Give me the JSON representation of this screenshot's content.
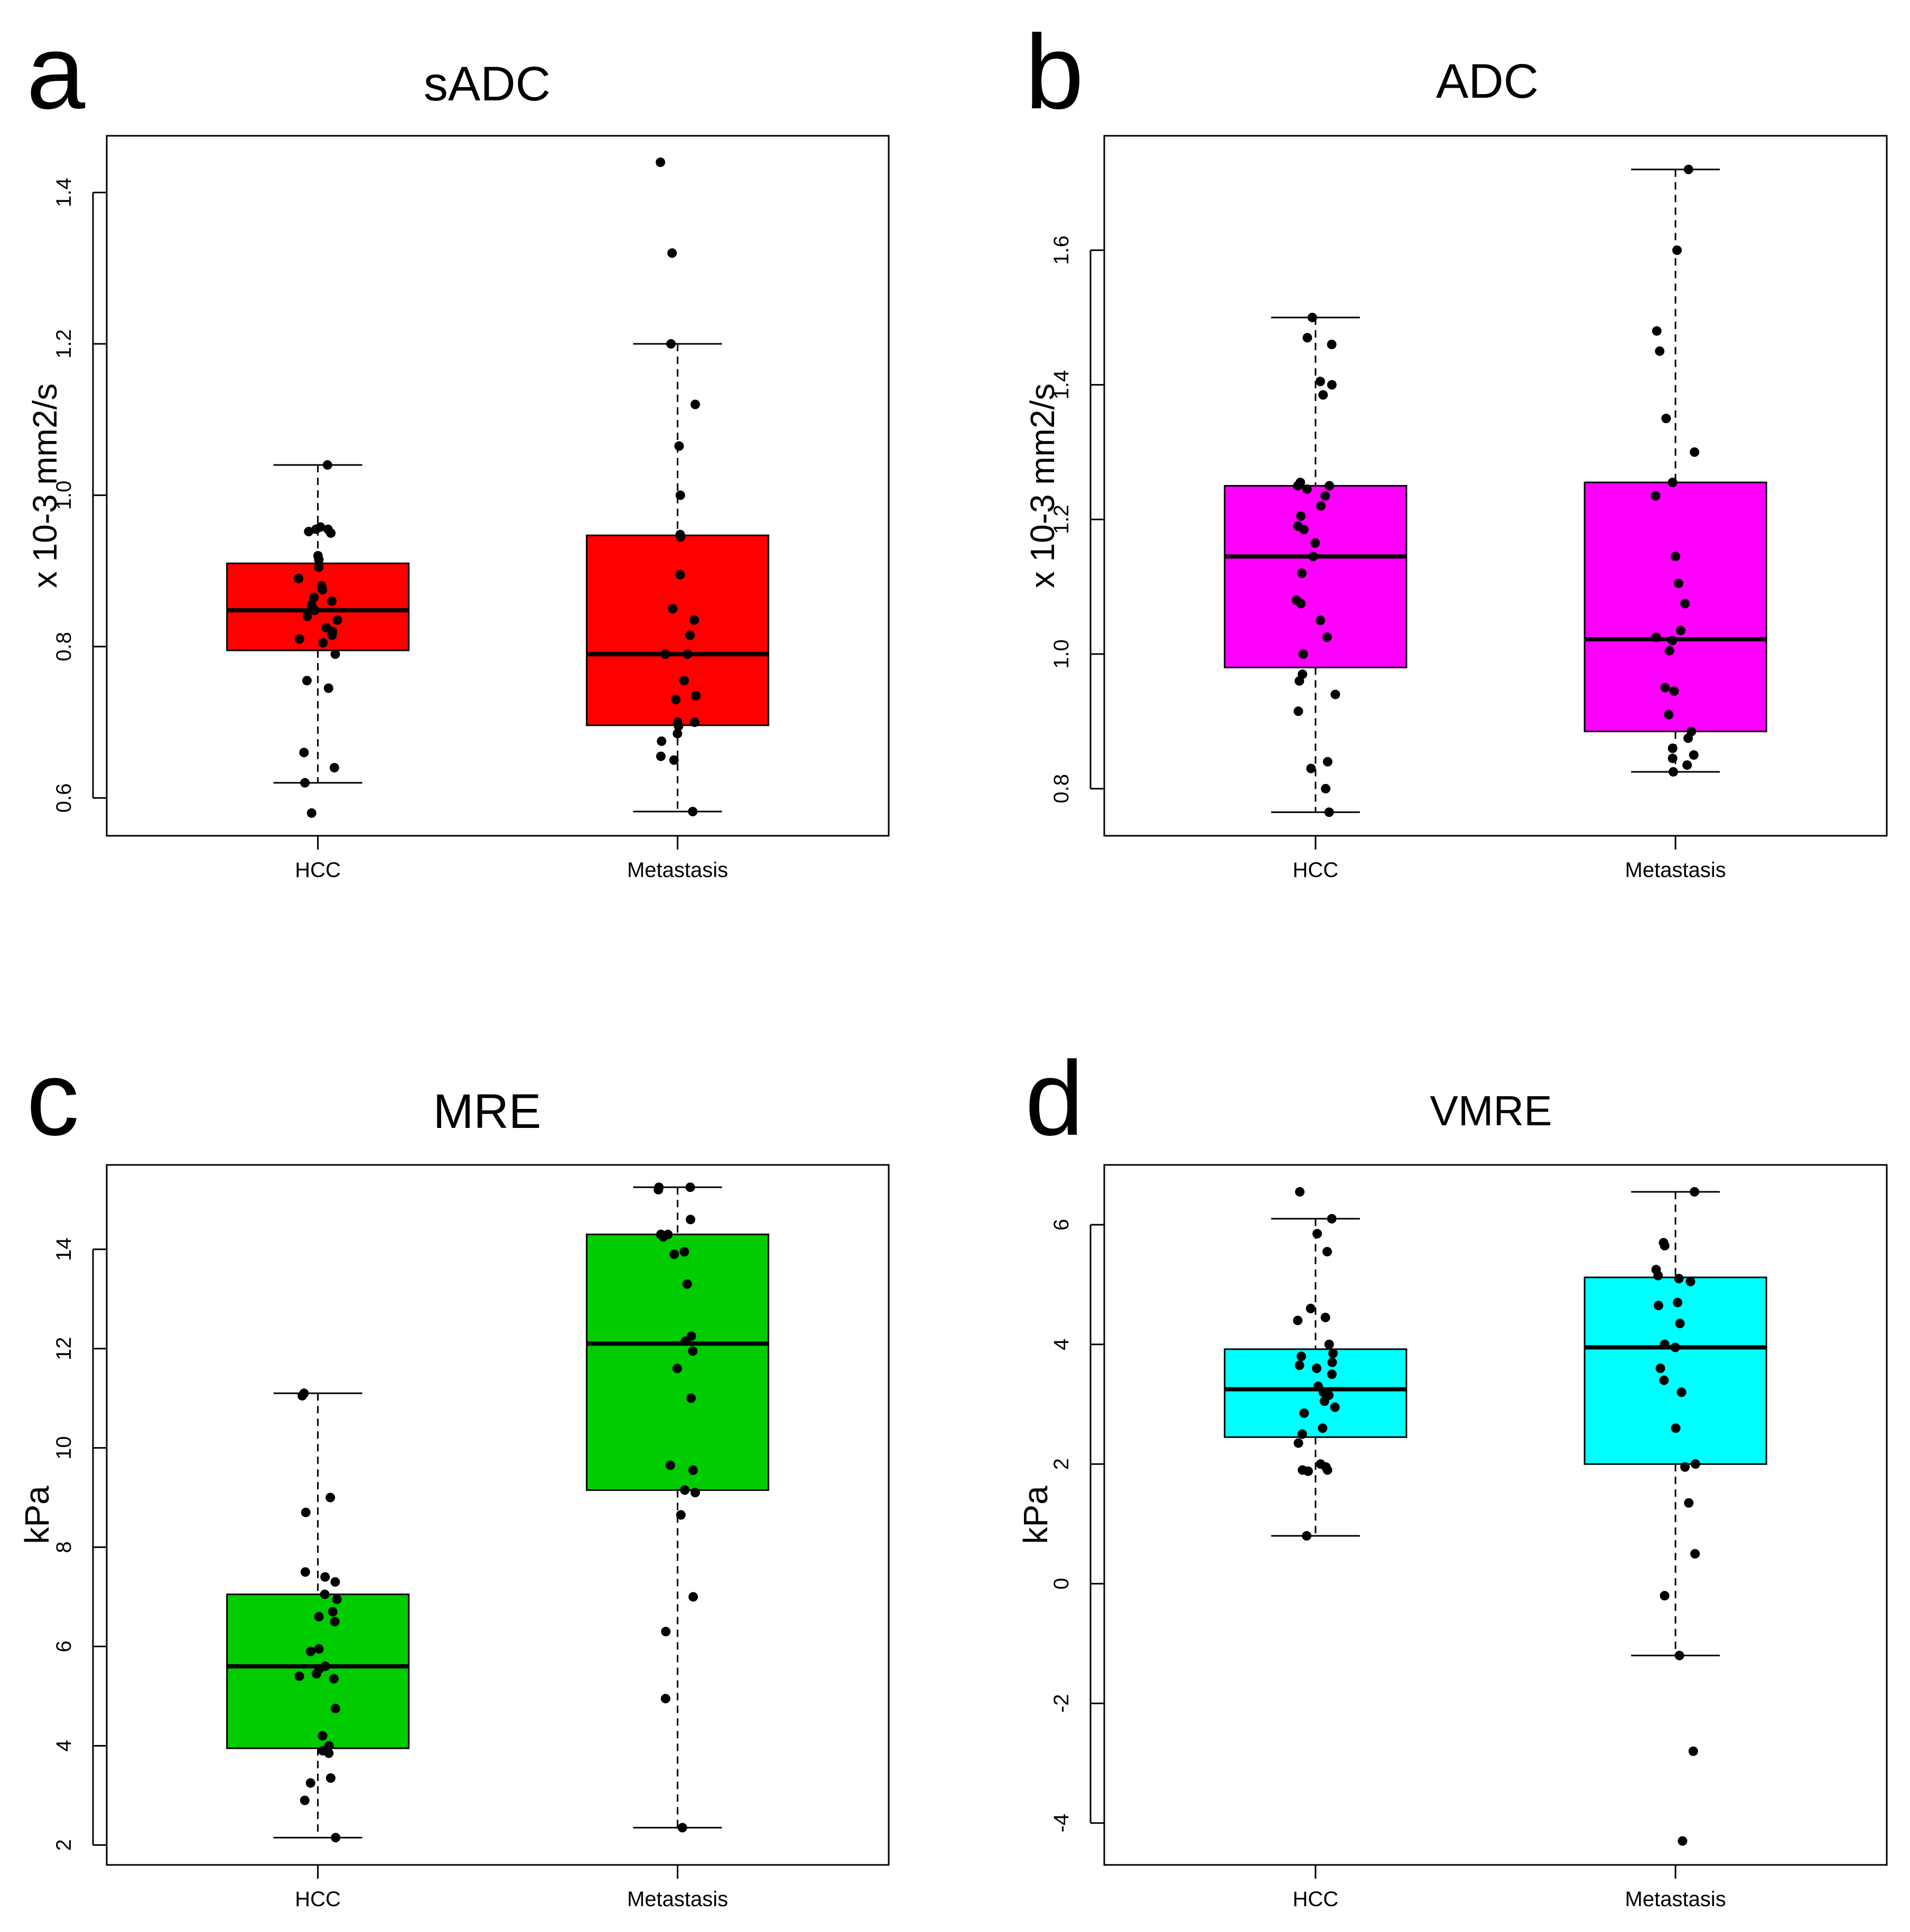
{
  "chart_data": [
    {
      "type": "box",
      "panel_label": "a",
      "title": "sADC",
      "ylabel": "x 10-3 mm2/s",
      "xlabel": "",
      "ylim": [
        0.55,
        1.475
      ],
      "yticks": [
        "0.6",
        "0.8",
        "1.0",
        "1.2",
        "1.4"
      ],
      "box_color": "#ff0000",
      "categories": [
        "HCC",
        "Metastasis"
      ],
      "series": [
        {
          "name": "HCC",
          "whisker_low": 0.62,
          "q1": 0.795,
          "median": 0.848,
          "q3": 0.91,
          "whisker_high": 1.04,
          "points": [
            1.04,
            0.958,
            0.955,
            0.952,
            0.95,
            0.955,
            0.92,
            0.915,
            0.905,
            0.89,
            0.88,
            0.875,
            0.865,
            0.86,
            0.855,
            0.848,
            0.84,
            0.835,
            0.825,
            0.82,
            0.815,
            0.81,
            0.805,
            0.79,
            0.755,
            0.745,
            0.66,
            0.64,
            0.62,
            0.58
          ]
        },
        {
          "name": "Metastasis",
          "whisker_low": 0.582,
          "q1": 0.696,
          "median": 0.79,
          "q3": 0.947,
          "whisker_high": 1.2,
          "points": [
            1.44,
            1.32,
            1.2,
            1.12,
            1.065,
            1.0,
            0.948,
            0.945,
            0.895,
            0.85,
            0.835,
            0.815,
            0.79,
            0.79,
            0.755,
            0.735,
            0.73,
            0.7,
            0.7,
            0.695,
            0.685,
            0.675,
            0.655,
            0.65,
            0.582
          ]
        }
      ]
    },
    {
      "type": "box",
      "panel_label": "b",
      "title": "ADC",
      "ylabel": "x 10-3 mm2/s",
      "xlabel": "",
      "ylim": [
        0.73,
        1.77
      ],
      "yticks": [
        "0.8",
        "1.0",
        "1.2",
        "1.4",
        "1.6"
      ],
      "box_color": "#ff00ff",
      "categories": [
        "HCC",
        "Metastasis"
      ],
      "series": [
        {
          "name": "HCC",
          "whisker_low": 0.765,
          "q1": 0.98,
          "median": 1.145,
          "q3": 1.25,
          "whisker_high": 1.5,
          "points": [
            1.5,
            1.47,
            1.46,
            1.405,
            1.4,
            1.385,
            1.255,
            1.25,
            1.25,
            1.245,
            1.235,
            1.22,
            1.205,
            1.19,
            1.185,
            1.165,
            1.145,
            1.12,
            1.08,
            1.075,
            1.05,
            1.025,
            1.0,
            0.97,
            0.96,
            0.94,
            0.915,
            0.84,
            0.83,
            0.8,
            0.765
          ]
        },
        {
          "name": "Metastasis",
          "whisker_low": 0.825,
          "q1": 0.885,
          "median": 1.022,
          "q3": 1.255,
          "whisker_high": 1.72,
          "points": [
            1.72,
            1.6,
            1.48,
            1.45,
            1.35,
            1.3,
            1.255,
            1.235,
            1.145,
            1.105,
            1.075,
            1.035,
            1.025,
            1.02,
            1.005,
            0.95,
            0.945,
            0.91,
            0.885,
            0.875,
            0.86,
            0.85,
            0.845,
            0.835,
            0.825
          ]
        }
      ]
    },
    {
      "type": "box",
      "panel_label": "c",
      "title": "MRE",
      "ylabel": "kPa",
      "xlabel": "",
      "ylim": [
        1.6,
        15.7
      ],
      "yticks": [
        "2",
        "4",
        "6",
        "8",
        "10",
        "12",
        "14"
      ],
      "box_color": "#00cc00",
      "categories": [
        "HCC",
        "Metastasis"
      ],
      "series": [
        {
          "name": "HCC",
          "whisker_low": 2.15,
          "q1": 3.95,
          "median": 5.6,
          "q3": 7.05,
          "whisker_high": 11.1,
          "points": [
            11.1,
            11.05,
            9.0,
            8.7,
            7.5,
            7.4,
            7.3,
            7.05,
            6.95,
            6.7,
            6.6,
            6.5,
            5.95,
            5.9,
            5.6,
            5.55,
            5.45,
            5.4,
            5.35,
            4.75,
            4.2,
            4.0,
            3.9,
            3.85,
            3.35,
            3.25,
            2.9,
            2.15
          ]
        },
        {
          "name": "Metastasis",
          "whisker_low": 2.35,
          "q1": 9.15,
          "median": 12.1,
          "q3": 14.3,
          "whisker_high": 15.25,
          "points": [
            15.25,
            15.25,
            15.2,
            14.6,
            14.3,
            14.3,
            14.25,
            13.95,
            13.9,
            13.3,
            12.25,
            12.15,
            11.95,
            11.6,
            11.0,
            9.65,
            9.55,
            9.15,
            9.1,
            8.65,
            7.0,
            6.3,
            4.95,
            2.35
          ]
        }
      ]
    },
    {
      "type": "box",
      "panel_label": "d",
      "title": "VMRE",
      "ylabel": "kPa",
      "xlabel": "",
      "ylim": [
        -4.7,
        7.0
      ],
      "yticks": [
        "-4",
        "-2",
        "0",
        "2",
        "4",
        "6"
      ],
      "box_color": "#00ffff",
      "categories": [
        "HCC",
        "Metastasis"
      ],
      "series": [
        {
          "name": "HCC",
          "whisker_low": 0.8,
          "q1": 2.45,
          "median": 3.25,
          "q3": 3.92,
          "whisker_high": 6.1,
          "points": [
            6.55,
            6.1,
            5.85,
            5.55,
            4.6,
            4.45,
            4.4,
            4.0,
            3.85,
            3.8,
            3.7,
            3.65,
            3.6,
            3.5,
            3.3,
            3.2,
            3.15,
            3.05,
            2.95,
            2.85,
            2.6,
            2.5,
            2.35,
            2.0,
            1.95,
            1.9,
            1.9,
            1.88,
            0.8
          ]
        },
        {
          "name": "Metastasis",
          "whisker_low": -1.2,
          "q1": 2.0,
          "median": 3.95,
          "q3": 5.12,
          "whisker_high": 6.55,
          "points": [
            6.55,
            5.7,
            5.65,
            5.25,
            5.15,
            5.1,
            5.05,
            4.7,
            4.65,
            4.35,
            4.0,
            3.95,
            3.6,
            3.4,
            3.2,
            2.6,
            2.0,
            1.95,
            1.35,
            0.5,
            -0.2,
            -1.2,
            -2.8,
            -4.3
          ]
        }
      ]
    }
  ]
}
